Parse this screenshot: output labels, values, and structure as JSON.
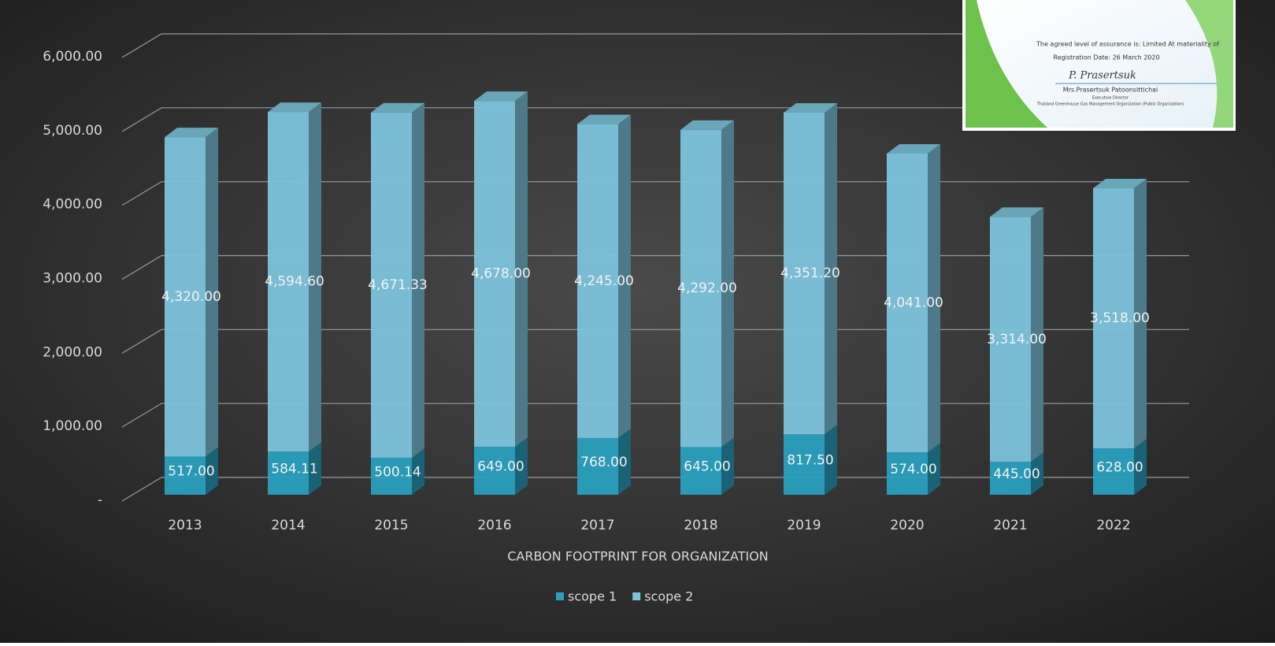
{
  "chart_data": {
    "type": "stacked-bar-3d",
    "x_label": "CARBON FOOTPRINT FOR ORGANIZATION",
    "categories": [
      "2013",
      "2014",
      "2015",
      "2016",
      "2017",
      "2018",
      "2019",
      "2020",
      "2021",
      "2022"
    ],
    "series": [
      {
        "name": "scope 1",
        "color": "#2a9fbe",
        "values": [
          517,
          584.11,
          500.14,
          649,
          768,
          645,
          817.5,
          574,
          445,
          628
        ],
        "value_labels": [
          "517.00",
          "584.11",
          "500.14",
          "649.00",
          "768.00",
          "645.00",
          "817.50",
          "574.00",
          "445.00",
          "628.00"
        ]
      },
      {
        "name": "scope 2",
        "color": "#7cc3db",
        "values": [
          4320,
          4594.6,
          4671.33,
          4678,
          4245,
          4292,
          4351.2,
          4041,
          3314,
          3518
        ],
        "value_labels": [
          "4,320.00",
          "4,594.60",
          "4,671.33",
          "4,678.00",
          "4,245.00",
          "4,292.00",
          "4,351.20",
          "4,041.00",
          "3,314.00",
          "3,518.00"
        ]
      }
    ],
    "ylim": [
      0,
      6000
    ],
    "yticks": [
      {
        "value": 0,
        "label": "-"
      },
      {
        "value": 1000,
        "label": "1,000.00"
      },
      {
        "value": 2000,
        "label": "2,000.00"
      },
      {
        "value": 3000,
        "label": "3,000.00"
      },
      {
        "value": 4000,
        "label": "4,000.00"
      },
      {
        "value": 5000,
        "label": "5,000.00"
      },
      {
        "value": 6000,
        "label": "6,000.00"
      }
    ],
    "grid": true,
    "legend": "bottom"
  },
  "inset": {
    "assurance": "The agreed level of assurance is: Limited At materiality of",
    "registration": "Registration Date: 26 March 2020",
    "signature": "P. Prasertsuk",
    "signer": "Mrs.Prasertsuk Patoonsittichai",
    "position": "Executive Director",
    "organization": "Thailand Greenhouse Gas Management Organization (Public Organization)"
  }
}
